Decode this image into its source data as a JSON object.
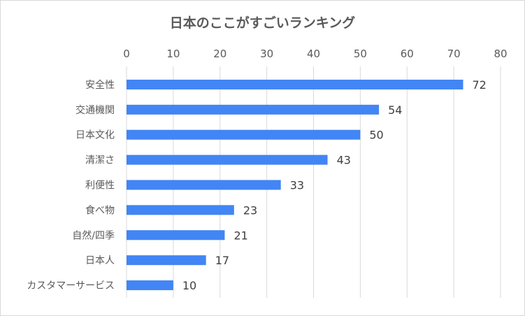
{
  "chart_data": {
    "type": "bar",
    "orientation": "horizontal",
    "title": "日本のここがすごいランキング",
    "categories": [
      "安全性",
      "交通機関",
      "日本文化",
      "清潔さ",
      "利便性",
      "食べ物",
      "自然/四季",
      "日本人",
      "カスタマーサービス"
    ],
    "values": [
      72,
      54,
      50,
      43,
      33,
      23,
      21,
      17,
      10
    ],
    "xlim": [
      0,
      80
    ],
    "xticks": [
      0,
      10,
      20,
      30,
      40,
      50,
      60,
      70,
      80
    ],
    "x_axis_position": "top",
    "grid": true,
    "data_labels": true,
    "bar_color": "#4285f4",
    "grid_color": "#d9d9d9"
  }
}
